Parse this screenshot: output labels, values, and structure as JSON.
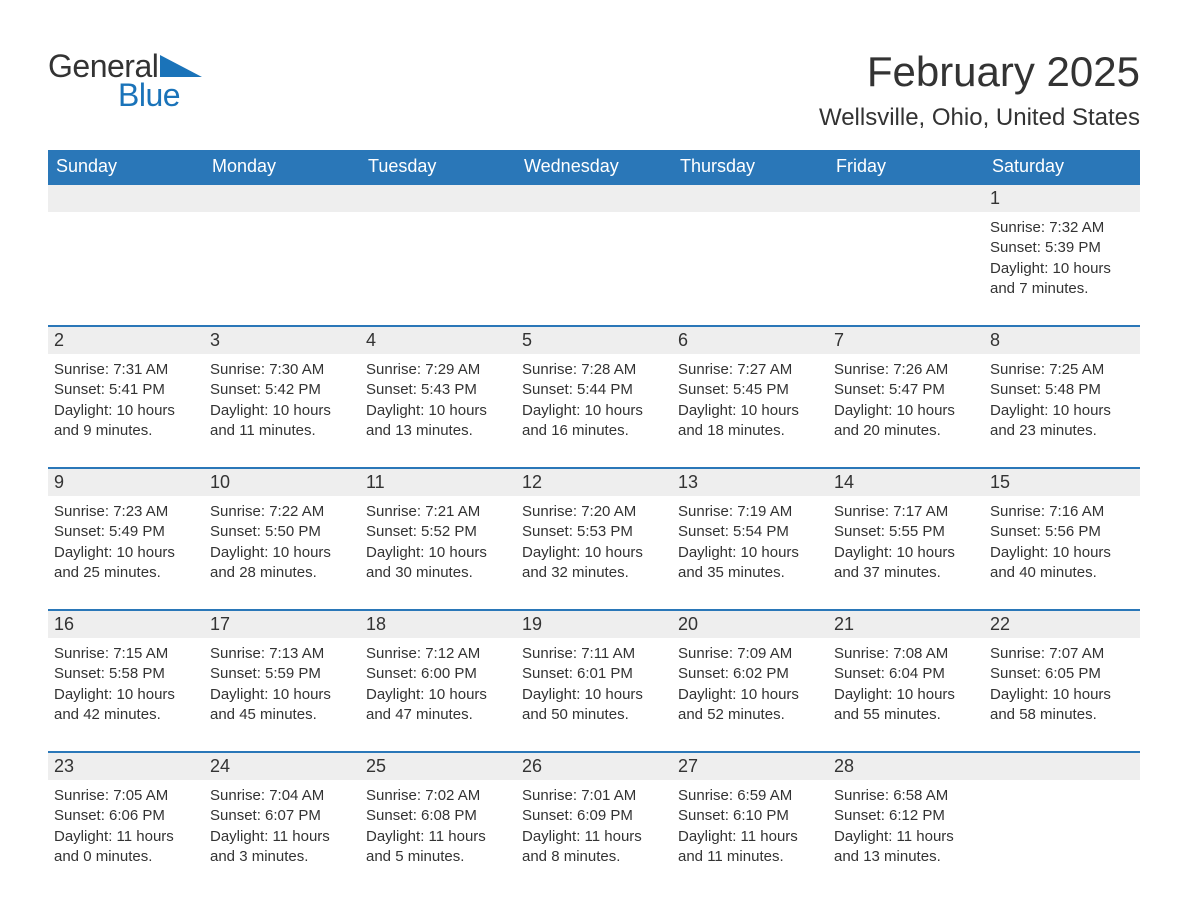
{
  "logo": {
    "text1": "General",
    "text2": "Blue",
    "accent": "#1a73b9"
  },
  "title": "February 2025",
  "location": "Wellsville, Ohio, United States",
  "colors": {
    "headerBar": "#2a77b8",
    "headerText": "#ffffff",
    "dayNumBg": "#eeeeee",
    "weekBorder": "#2a77b8",
    "textColor": "#333333",
    "background": "#ffffff"
  },
  "typography": {
    "title_fontsize": 42,
    "location_fontsize": 24,
    "weekday_fontsize": 18,
    "daynum_fontsize": 18,
    "body_fontsize": 15,
    "logo_fontsize": 32
  },
  "layout": {
    "cols": 7,
    "rows": 5
  },
  "weekdays": [
    "Sunday",
    "Monday",
    "Tuesday",
    "Wednesday",
    "Thursday",
    "Friday",
    "Saturday"
  ],
  "weeks": [
    [
      {
        "day": null
      },
      {
        "day": null
      },
      {
        "day": null
      },
      {
        "day": null
      },
      {
        "day": null
      },
      {
        "day": null
      },
      {
        "day": "1",
        "sunrise": "Sunrise: 7:32 AM",
        "sunset": "Sunset: 5:39 PM",
        "daylight1": "Daylight: 10 hours",
        "daylight2": "and 7 minutes."
      }
    ],
    [
      {
        "day": "2",
        "sunrise": "Sunrise: 7:31 AM",
        "sunset": "Sunset: 5:41 PM",
        "daylight1": "Daylight: 10 hours",
        "daylight2": "and 9 minutes."
      },
      {
        "day": "3",
        "sunrise": "Sunrise: 7:30 AM",
        "sunset": "Sunset: 5:42 PM",
        "daylight1": "Daylight: 10 hours",
        "daylight2": "and 11 minutes."
      },
      {
        "day": "4",
        "sunrise": "Sunrise: 7:29 AM",
        "sunset": "Sunset: 5:43 PM",
        "daylight1": "Daylight: 10 hours",
        "daylight2": "and 13 minutes."
      },
      {
        "day": "5",
        "sunrise": "Sunrise: 7:28 AM",
        "sunset": "Sunset: 5:44 PM",
        "daylight1": "Daylight: 10 hours",
        "daylight2": "and 16 minutes."
      },
      {
        "day": "6",
        "sunrise": "Sunrise: 7:27 AM",
        "sunset": "Sunset: 5:45 PM",
        "daylight1": "Daylight: 10 hours",
        "daylight2": "and 18 minutes."
      },
      {
        "day": "7",
        "sunrise": "Sunrise: 7:26 AM",
        "sunset": "Sunset: 5:47 PM",
        "daylight1": "Daylight: 10 hours",
        "daylight2": "and 20 minutes."
      },
      {
        "day": "8",
        "sunrise": "Sunrise: 7:25 AM",
        "sunset": "Sunset: 5:48 PM",
        "daylight1": "Daylight: 10 hours",
        "daylight2": "and 23 minutes."
      }
    ],
    [
      {
        "day": "9",
        "sunrise": "Sunrise: 7:23 AM",
        "sunset": "Sunset: 5:49 PM",
        "daylight1": "Daylight: 10 hours",
        "daylight2": "and 25 minutes."
      },
      {
        "day": "10",
        "sunrise": "Sunrise: 7:22 AM",
        "sunset": "Sunset: 5:50 PM",
        "daylight1": "Daylight: 10 hours",
        "daylight2": "and 28 minutes."
      },
      {
        "day": "11",
        "sunrise": "Sunrise: 7:21 AM",
        "sunset": "Sunset: 5:52 PM",
        "daylight1": "Daylight: 10 hours",
        "daylight2": "and 30 minutes."
      },
      {
        "day": "12",
        "sunrise": "Sunrise: 7:20 AM",
        "sunset": "Sunset: 5:53 PM",
        "daylight1": "Daylight: 10 hours",
        "daylight2": "and 32 minutes."
      },
      {
        "day": "13",
        "sunrise": "Sunrise: 7:19 AM",
        "sunset": "Sunset: 5:54 PM",
        "daylight1": "Daylight: 10 hours",
        "daylight2": "and 35 minutes."
      },
      {
        "day": "14",
        "sunrise": "Sunrise: 7:17 AM",
        "sunset": "Sunset: 5:55 PM",
        "daylight1": "Daylight: 10 hours",
        "daylight2": "and 37 minutes."
      },
      {
        "day": "15",
        "sunrise": "Sunrise: 7:16 AM",
        "sunset": "Sunset: 5:56 PM",
        "daylight1": "Daylight: 10 hours",
        "daylight2": "and 40 minutes."
      }
    ],
    [
      {
        "day": "16",
        "sunrise": "Sunrise: 7:15 AM",
        "sunset": "Sunset: 5:58 PM",
        "daylight1": "Daylight: 10 hours",
        "daylight2": "and 42 minutes."
      },
      {
        "day": "17",
        "sunrise": "Sunrise: 7:13 AM",
        "sunset": "Sunset: 5:59 PM",
        "daylight1": "Daylight: 10 hours",
        "daylight2": "and 45 minutes."
      },
      {
        "day": "18",
        "sunrise": "Sunrise: 7:12 AM",
        "sunset": "Sunset: 6:00 PM",
        "daylight1": "Daylight: 10 hours",
        "daylight2": "and 47 minutes."
      },
      {
        "day": "19",
        "sunrise": "Sunrise: 7:11 AM",
        "sunset": "Sunset: 6:01 PM",
        "daylight1": "Daylight: 10 hours",
        "daylight2": "and 50 minutes."
      },
      {
        "day": "20",
        "sunrise": "Sunrise: 7:09 AM",
        "sunset": "Sunset: 6:02 PM",
        "daylight1": "Daylight: 10 hours",
        "daylight2": "and 52 minutes."
      },
      {
        "day": "21",
        "sunrise": "Sunrise: 7:08 AM",
        "sunset": "Sunset: 6:04 PM",
        "daylight1": "Daylight: 10 hours",
        "daylight2": "and 55 minutes."
      },
      {
        "day": "22",
        "sunrise": "Sunrise: 7:07 AM",
        "sunset": "Sunset: 6:05 PM",
        "daylight1": "Daylight: 10 hours",
        "daylight2": "and 58 minutes."
      }
    ],
    [
      {
        "day": "23",
        "sunrise": "Sunrise: 7:05 AM",
        "sunset": "Sunset: 6:06 PM",
        "daylight1": "Daylight: 11 hours",
        "daylight2": "and 0 minutes."
      },
      {
        "day": "24",
        "sunrise": "Sunrise: 7:04 AM",
        "sunset": "Sunset: 6:07 PM",
        "daylight1": "Daylight: 11 hours",
        "daylight2": "and 3 minutes."
      },
      {
        "day": "25",
        "sunrise": "Sunrise: 7:02 AM",
        "sunset": "Sunset: 6:08 PM",
        "daylight1": "Daylight: 11 hours",
        "daylight2": "and 5 minutes."
      },
      {
        "day": "26",
        "sunrise": "Sunrise: 7:01 AM",
        "sunset": "Sunset: 6:09 PM",
        "daylight1": "Daylight: 11 hours",
        "daylight2": "and 8 minutes."
      },
      {
        "day": "27",
        "sunrise": "Sunrise: 6:59 AM",
        "sunset": "Sunset: 6:10 PM",
        "daylight1": "Daylight: 11 hours",
        "daylight2": "and 11 minutes."
      },
      {
        "day": "28",
        "sunrise": "Sunrise: 6:58 AM",
        "sunset": "Sunset: 6:12 PM",
        "daylight1": "Daylight: 11 hours",
        "daylight2": "and 13 minutes."
      },
      {
        "day": null
      }
    ]
  ]
}
